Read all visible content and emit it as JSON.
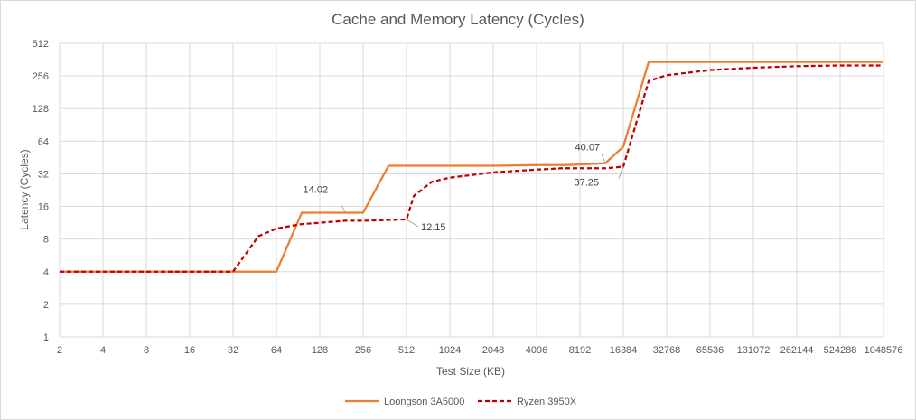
{
  "chart_data": {
    "type": "line",
    "title": "Cache and Memory Latency (Cycles)",
    "xlabel": "Test Size (KB)",
    "ylabel": "Latency (Cycles)",
    "x_scale": "log2",
    "y_scale": "log2",
    "xlim": [
      2,
      1048576
    ],
    "ylim": [
      1,
      512
    ],
    "x_ticks": [
      2,
      4,
      8,
      16,
      32,
      64,
      128,
      256,
      512,
      1024,
      2048,
      4096,
      8192,
      16384,
      32768,
      65536,
      131072,
      262144,
      524288,
      1048576
    ],
    "x_tick_labels": [
      "2",
      "4",
      "8",
      "16",
      "32",
      "64",
      "128",
      "256",
      "512",
      "1024",
      "2048",
      "4096",
      "8192",
      "16384",
      "32768",
      "65536",
      "131072",
      "262144",
      "524288",
      "1048576"
    ],
    "y_ticks": [
      1,
      2,
      4,
      8,
      16,
      32,
      64,
      128,
      256,
      512
    ],
    "y_tick_labels": [
      "1",
      "2",
      "4",
      "8",
      "16",
      "32",
      "64",
      "128",
      "256",
      "512"
    ],
    "grid": true,
    "legend_position": "bottom",
    "series": [
      {
        "name": "Loongson 3A5000",
        "color": "#ed7d31",
        "style": "solid",
        "x": [
          2,
          4,
          8,
          16,
          32,
          64,
          96,
          128,
          192,
          256,
          384,
          512,
          768,
          1024,
          2048,
          4096,
          6144,
          8192,
          12288,
          16384,
          24576,
          32768,
          65536,
          131072,
          262144,
          524288,
          1048576
        ],
        "y": [
          4,
          4,
          4,
          4,
          4,
          4,
          14.02,
          14.02,
          14.02,
          14.02,
          38,
          38,
          38,
          38,
          38,
          38.5,
          38.5,
          39,
          40.07,
          57,
          345,
          345,
          345,
          345,
          345,
          345,
          345
        ]
      },
      {
        "name": "Ryzen 3950X",
        "color": "#c00000",
        "style": "dashed",
        "x": [
          2,
          4,
          8,
          16,
          32,
          48,
          64,
          96,
          128,
          192,
          256,
          384,
          512,
          576,
          768,
          1024,
          2048,
          4096,
          6144,
          8192,
          12288,
          16384,
          24576,
          32768,
          65536,
          131072,
          262144,
          524288,
          1048576
        ],
        "y": [
          4,
          4,
          4,
          4,
          4,
          8.5,
          10,
          11,
          11.3,
          11.8,
          11.8,
          12,
          12.15,
          20,
          27,
          29.5,
          33,
          35,
          36,
          36,
          36,
          37.25,
          230,
          260,
          290,
          305,
          315,
          320,
          320
        ]
      }
    ],
    "annotations": [
      {
        "label": "14.02",
        "series": "Loongson 3A5000",
        "x": 192,
        "y": 14.02
      },
      {
        "label": "12.15",
        "series": "Ryzen 3950X",
        "x": 512,
        "y": 12.15
      },
      {
        "label": "40.07",
        "series": "Loongson 3A5000",
        "x": 12288,
        "y": 40.07
      },
      {
        "label": "37.25",
        "series": "Ryzen 3950X",
        "x": 16384,
        "y": 37.25
      }
    ]
  }
}
